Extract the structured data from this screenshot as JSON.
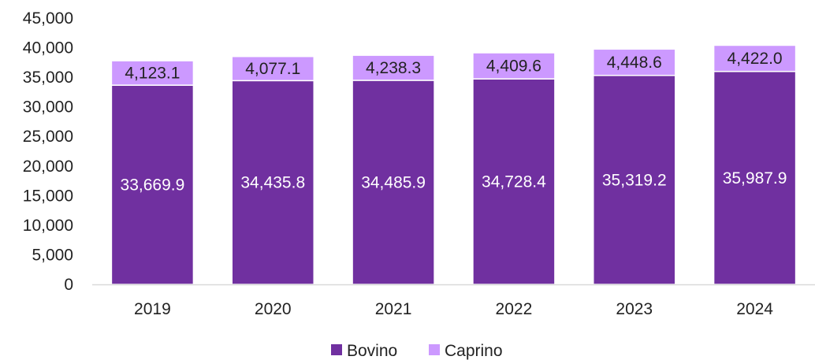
{
  "chart_data": {
    "type": "bar",
    "stacked": true,
    "categories": [
      "2019",
      "2020",
      "2021",
      "2022",
      "2023",
      "2024"
    ],
    "series": [
      {
        "name": "Bovino",
        "color": "#7030A0",
        "values": [
          33669.9,
          34435.8,
          34485.9,
          34728.4,
          35319.2,
          35987.9
        ],
        "labels": [
          "33,669.9",
          "34,435.8",
          "34,485.9",
          "34,728.4",
          "35,319.2",
          "35,987.9"
        ],
        "label_color": "#ffffff"
      },
      {
        "name": "Caprino",
        "color": "#CC99FF",
        "values": [
          4123.1,
          4077.1,
          4238.3,
          4409.6,
          4448.6,
          4422.0
        ],
        "labels": [
          "4,123.1",
          "4,077.1",
          "4,238.3",
          "4,409.6",
          "4,448.6",
          "4,422.0"
        ],
        "label_color": "#222222"
      }
    ],
    "ylim": [
      0,
      45000
    ],
    "yticks": [
      0,
      5000,
      10000,
      15000,
      20000,
      25000,
      30000,
      35000,
      40000,
      45000
    ],
    "ytick_labels": [
      "0",
      "5,000",
      "10,000",
      "15,000",
      "20,000",
      "25,000",
      "30,000",
      "35,000",
      "40,000",
      "45,000"
    ],
    "grid": false,
    "legend_position": "bottom",
    "axis_color": "#D9D9D9"
  }
}
